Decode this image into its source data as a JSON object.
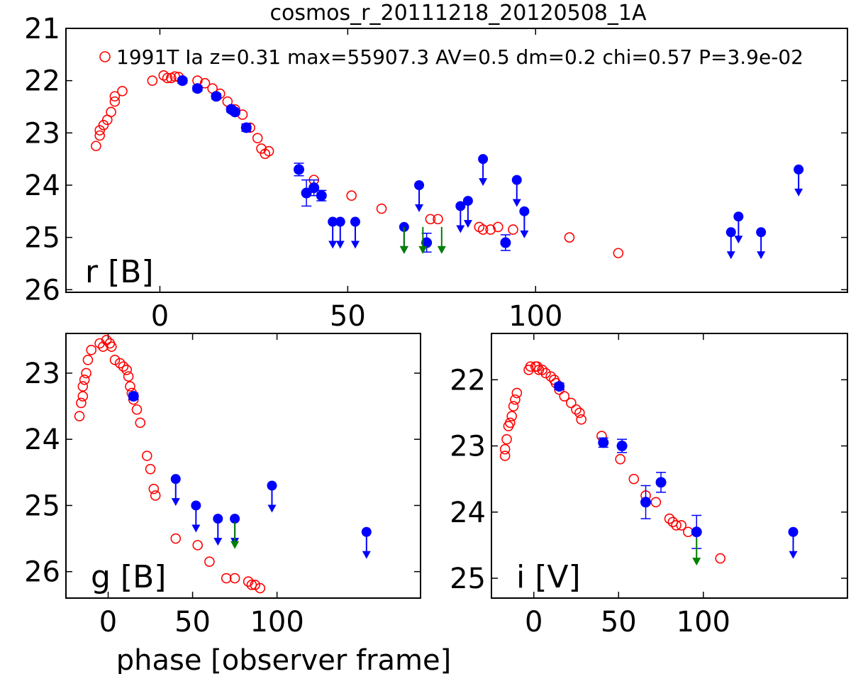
{
  "title": "cosmos_r_20111218_20120508_1A",
  "xlabel": "phase [observer frame]",
  "colors": {
    "model": "#ff0000",
    "detection": "#0000ff",
    "upper_limit_alt": "#007f00"
  },
  "chart_data": [
    {
      "type": "scatter",
      "panel": "top",
      "label": "r [B]",
      "legend": "1991T Ia z=0.31 max=55907.3 AV=0.5 dm=0.2 chi=0.57 P=3.9e-02",
      "legend_position": "top",
      "xlim": [
        -25,
        183
      ],
      "ylim": [
        26.05,
        21.0
      ],
      "y_inverted": true,
      "xticks": [
        0,
        50,
        100
      ],
      "yticks": [
        21,
        22,
        23,
        24,
        25,
        26
      ],
      "series": [
        {
          "kind": "open",
          "color": "#ff0000",
          "name": "1991T Ia z=0.31 max=55907.3 AV=0.5 dm=0.2 chi=0.57 P=3.9e-02",
          "x": [
            -17,
            -16,
            -16,
            -15,
            -14,
            -13,
            -12,
            -12,
            -10,
            -2,
            1,
            2,
            3,
            4,
            5,
            10,
            12,
            14,
            16,
            18,
            20,
            22,
            24,
            26,
            27,
            28,
            29,
            41,
            51,
            59,
            72,
            74,
            85,
            86,
            88,
            90,
            94,
            109,
            122
          ],
          "y": [
            23.25,
            23.05,
            22.95,
            22.85,
            22.75,
            22.6,
            22.4,
            22.3,
            22.2,
            22.0,
            21.9,
            21.95,
            21.95,
            21.92,
            21.93,
            22.0,
            22.05,
            22.15,
            22.25,
            22.4,
            22.55,
            22.65,
            22.9,
            23.1,
            23.3,
            23.4,
            23.35,
            23.9,
            24.2,
            24.45,
            24.65,
            24.65,
            24.8,
            24.85,
            24.85,
            24.8,
            24.85,
            25.0,
            25.3
          ]
        },
        {
          "kind": "filled",
          "color": "#0000ff",
          "x": [
            6,
            10,
            15,
            19,
            20,
            23,
            37,
            39,
            41,
            43,
            71,
            92
          ],
          "y": [
            22.0,
            22.15,
            22.3,
            22.55,
            22.6,
            22.9,
            23.7,
            24.15,
            24.05,
            24.2,
            25.1,
            25.1
          ],
          "err": [
            0.05,
            0.05,
            0.05,
            0.05,
            0.05,
            0.07,
            0.12,
            0.25,
            0.15,
            0.1,
            0.18,
            0.15
          ]
        },
        {
          "kind": "upper_limit",
          "color": "#0000ff",
          "x": [
            46,
            48,
            52,
            65,
            69,
            80,
            82,
            86,
            95,
            97,
            152,
            154,
            160,
            170
          ],
          "y": [
            24.7,
            24.7,
            24.7,
            24.8,
            24.0,
            24.4,
            24.3,
            23.5,
            23.9,
            24.5,
            24.9,
            24.6,
            24.9,
            23.7
          ]
        },
        {
          "kind": "upper_limit",
          "color": "#007f00",
          "x": [
            65,
            70,
            75
          ],
          "y": [
            24.8,
            24.8,
            24.8
          ]
        }
      ]
    },
    {
      "type": "scatter",
      "panel": "bottom-left",
      "label": "g [B]",
      "xlim": [
        -25,
        185
      ],
      "ylim": [
        26.4,
        22.4
      ],
      "y_inverted": true,
      "xticks": [
        0,
        50,
        100
      ],
      "yticks": [
        23,
        24,
        25,
        26
      ],
      "series": [
        {
          "kind": "open",
          "color": "#ff0000",
          "x": [
            -17,
            -16,
            -15,
            -15,
            -14,
            -13,
            -12,
            -10,
            -5,
            -3,
            -1,
            1,
            2,
            4,
            7,
            9,
            11,
            12,
            13,
            14,
            15,
            17,
            19,
            23,
            25,
            27,
            28,
            40,
            53,
            60,
            70,
            75,
            83,
            85,
            87,
            90
          ],
          "y": [
            23.65,
            23.45,
            23.35,
            23.2,
            23.1,
            23.0,
            22.8,
            22.65,
            22.55,
            22.6,
            22.5,
            22.55,
            22.6,
            22.8,
            22.85,
            22.9,
            22.95,
            23.05,
            23.2,
            23.3,
            23.4,
            23.55,
            23.75,
            24.25,
            24.45,
            24.75,
            24.85,
            25.5,
            25.6,
            25.85,
            26.1,
            26.1,
            26.15,
            26.2,
            26.2,
            26.25
          ]
        },
        {
          "kind": "filled",
          "color": "#0000ff",
          "x": [
            15
          ],
          "y": [
            23.35
          ],
          "err": [
            0.05
          ]
        },
        {
          "kind": "upper_limit",
          "color": "#0000ff",
          "x": [
            40,
            52,
            65,
            75,
            97,
            153
          ],
          "y": [
            24.6,
            25.0,
            25.2,
            25.2,
            24.7,
            25.4
          ]
        },
        {
          "kind": "upper_limit",
          "color": "#007f00",
          "x": [
            75
          ],
          "y": [
            25.25
          ]
        }
      ]
    },
    {
      "type": "scatter",
      "panel": "bottom-right",
      "label": "i [V]",
      "xlim": [
        -25,
        185
      ],
      "ylim": [
        25.3,
        21.3
      ],
      "y_inverted": true,
      "xticks": [
        0,
        50,
        100
      ],
      "yticks": [
        22,
        23,
        24,
        25
      ],
      "series": [
        {
          "kind": "open",
          "color": "#ff0000",
          "x": [
            -17,
            -17,
            -16,
            -15,
            -14,
            -13,
            -12,
            -11,
            -10,
            -3,
            -2,
            1,
            2,
            3,
            5,
            7,
            10,
            12,
            13,
            15,
            18,
            22,
            25,
            27,
            28,
            40,
            51,
            59,
            66,
            72,
            80,
            82,
            84,
            87,
            91,
            110
          ],
          "y": [
            23.15,
            23.05,
            22.9,
            22.7,
            22.65,
            22.55,
            22.4,
            22.3,
            22.2,
            21.85,
            21.8,
            21.8,
            21.8,
            21.85,
            21.85,
            21.9,
            21.95,
            22.0,
            22.05,
            22.15,
            22.25,
            22.35,
            22.45,
            22.5,
            22.6,
            22.85,
            23.2,
            23.5,
            23.75,
            23.85,
            24.1,
            24.15,
            24.2,
            24.2,
            24.3,
            24.7
          ]
        },
        {
          "kind": "filled",
          "color": "#0000ff",
          "x": [
            15,
            41,
            52,
            66,
            75,
            96
          ],
          "y": [
            22.1,
            22.95,
            23.0,
            23.85,
            23.55,
            24.3
          ],
          "err": [
            0.05,
            0.07,
            0.1,
            0.25,
            0.15,
            0.25
          ]
        },
        {
          "kind": "upper_limit",
          "color": "#0000ff",
          "x": [
            153
          ],
          "y": [
            24.3
          ]
        },
        {
          "kind": "upper_limit",
          "color": "#007f00",
          "x": [
            96
          ],
          "y": [
            24.4
          ]
        }
      ]
    }
  ]
}
